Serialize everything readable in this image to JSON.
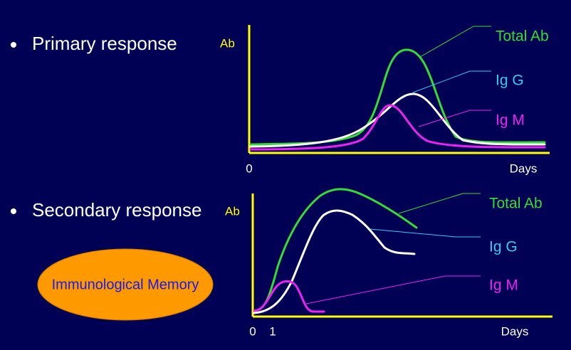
{
  "primary": {
    "label": "Primary response",
    "y_axis": "Ab",
    "x_start": "0",
    "x_end": "Days",
    "legend": [
      "Total Ab",
      "Ig G",
      "Ig M"
    ]
  },
  "secondary": {
    "label": "Secondary response",
    "y_axis": "Ab",
    "x_ticks": [
      "0",
      "1"
    ],
    "x_end": "Days",
    "legend": [
      "Total Ab",
      "Ig G",
      "Ig M"
    ]
  },
  "memory": "Immunological Memory"
}
